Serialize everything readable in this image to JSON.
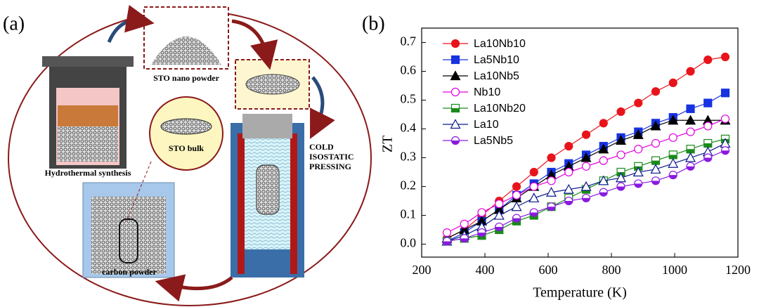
{
  "panel_a": {
    "label": "(a)",
    "nano_powder": "STO nano powder",
    "synthesis": "Hydrothermal synthesis",
    "bulk": "STO bulk",
    "pressing": [
      "COLD",
      "ISOSTATIC",
      "PRESSING"
    ],
    "carbon": "carbon powder"
  },
  "chart_data": {
    "type": "line",
    "panel_label": "(b)",
    "x_label": "Temperature (K)",
    "y_label": "ZT",
    "x": [
      280,
      335,
      390,
      445,
      500,
      555,
      610,
      665,
      720,
      775,
      830,
      885,
      940,
      995,
      1050,
      1105,
      1160
    ],
    "series": [
      {
        "name": "La10Nb10",
        "color": "#e8141b",
        "marker": "circle",
        "fill": "full",
        "values": [
          0.02,
          0.05,
          0.1,
          0.15,
          0.2,
          0.25,
          0.3,
          0.34,
          0.38,
          0.42,
          0.46,
          0.49,
          0.53,
          0.56,
          0.6,
          0.64,
          0.65
        ]
      },
      {
        "name": "La5Nb10",
        "color": "#1732e0",
        "marker": "square",
        "fill": "full",
        "values": [
          0.01,
          0.04,
          0.08,
          0.12,
          0.17,
          0.21,
          0.25,
          0.28,
          0.31,
          0.34,
          0.37,
          0.39,
          0.42,
          0.44,
          0.47,
          0.49,
          0.525
        ]
      },
      {
        "name": "La10Nb5",
        "color": "#000000",
        "marker": "triangle",
        "fill": "full",
        "values": [
          0.02,
          0.05,
          0.08,
          0.12,
          0.16,
          0.2,
          0.24,
          0.27,
          0.3,
          0.33,
          0.36,
          0.38,
          0.41,
          0.43,
          0.43,
          0.43,
          0.43
        ]
      },
      {
        "name": "Nb10",
        "color": "#e000e0",
        "marker": "circle",
        "fill": "open",
        "values": [
          0.04,
          0.07,
          0.11,
          0.14,
          0.17,
          0.2,
          0.22,
          0.25,
          0.27,
          0.29,
          0.31,
          0.33,
          0.35,
          0.37,
          0.39,
          0.41,
          0.435
        ]
      },
      {
        "name": "La10Nb20",
        "color": "#1a8a1a",
        "marker": "square",
        "fill": "half",
        "values": [
          0.01,
          0.02,
          0.03,
          0.05,
          0.08,
          0.1,
          0.13,
          0.16,
          0.19,
          0.22,
          0.25,
          0.27,
          0.29,
          0.31,
          0.33,
          0.35,
          0.365
        ]
      },
      {
        "name": "La10",
        "color": "#0a1a8a",
        "marker": "triangle",
        "fill": "open",
        "values": [
          0.01,
          0.03,
          0.06,
          0.1,
          0.13,
          0.16,
          0.18,
          0.19,
          0.2,
          0.22,
          0.23,
          0.25,
          0.26,
          0.28,
          0.3,
          0.32,
          0.35
        ]
      },
      {
        "name": "La5Nb5",
        "color": "#8a1ae0",
        "marker": "circle",
        "fill": "half",
        "values": [
          0.01,
          0.02,
          0.04,
          0.06,
          0.09,
          0.11,
          0.13,
          0.15,
          0.16,
          0.18,
          0.2,
          0.21,
          0.22,
          0.24,
          0.27,
          0.3,
          0.325
        ]
      }
    ],
    "xlim": [
      200,
      1200
    ],
    "xticks": [
      200,
      400,
      600,
      800,
      1000,
      1200
    ],
    "ylim": [
      -0.045,
      0.75
    ],
    "yticks": [
      {
        "value": 0,
        "label": "0.0"
      },
      0.1,
      0.2,
      0.3,
      0.4,
      0.5,
      0.6,
      0.7
    ],
    "legend": "upper left"
  }
}
